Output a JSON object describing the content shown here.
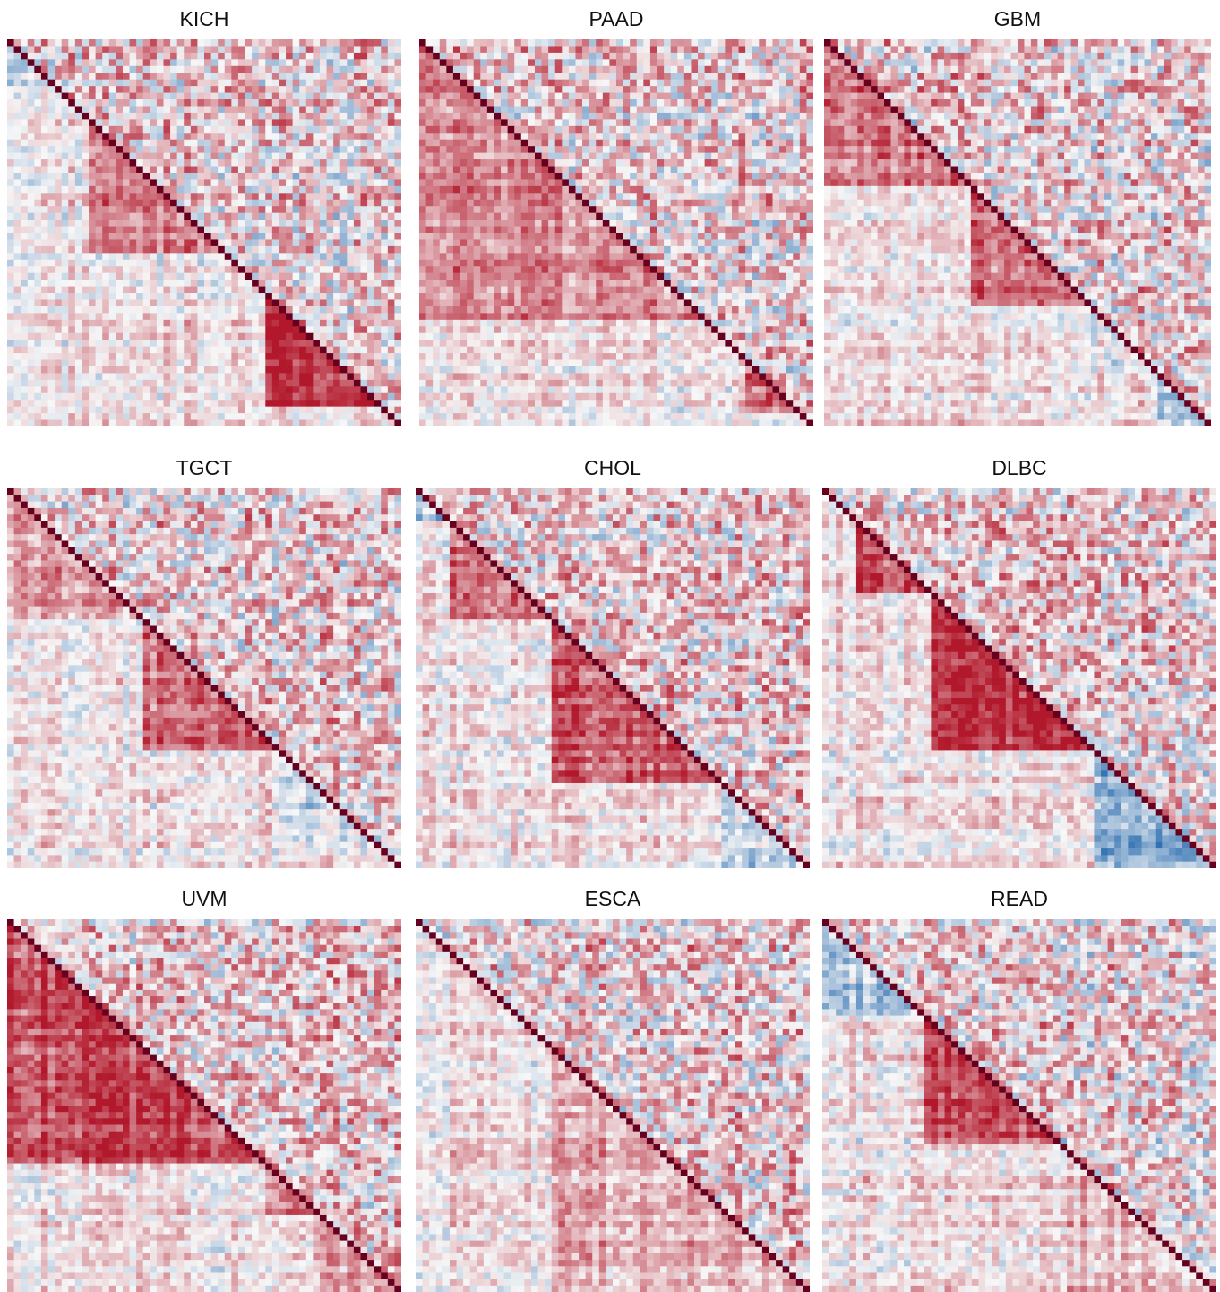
{
  "chart_data": [
    {
      "type": "heatmap",
      "title": "KICH",
      "lower_blocks": [
        [
          12,
          32,
          0.85
        ],
        [
          38,
          55,
          0.9
        ],
        [
          12,
          32,
          0.55
        ],
        [
          0,
          10,
          -0.1
        ]
      ]
    },
    {
      "type": "heatmap",
      "title": "PAAD",
      "lower_blocks": [
        [
          0,
          30,
          0.75
        ],
        [
          30,
          42,
          0.55
        ],
        [
          48,
          56,
          0.7
        ],
        [
          0,
          42,
          0.5
        ]
      ]
    },
    {
      "type": "heatmap",
      "title": "GBM",
      "lower_blocks": [
        [
          0,
          22,
          0.55
        ],
        [
          22,
          40,
          0.6
        ],
        [
          40,
          50,
          -0.05
        ],
        [
          50,
          58,
          -0.35
        ]
      ]
    },
    {
      "type": "heatmap",
      "title": "TGCT",
      "lower_blocks": [
        [
          20,
          40,
          0.65
        ],
        [
          0,
          20,
          0.45
        ],
        [
          40,
          55,
          -0.2
        ]
      ]
    },
    {
      "type": "heatmap",
      "title": "CHOL",
      "lower_blocks": [
        [
          5,
          20,
          0.55
        ],
        [
          20,
          45,
          0.7
        ],
        [
          0,
          5,
          -0.4
        ],
        [
          45,
          58,
          -0.25
        ]
      ]
    },
    {
      "type": "heatmap",
      "title": "DLBC",
      "lower_blocks": [
        [
          5,
          16,
          0.7
        ],
        [
          16,
          40,
          0.82
        ],
        [
          40,
          58,
          -0.45
        ]
      ]
    },
    {
      "type": "heatmap",
      "title": "UVM",
      "lower_blocks": [
        [
          0,
          38,
          0.75
        ],
        [
          38,
          46,
          0.55
        ],
        [
          46,
          58,
          0.35
        ]
      ]
    },
    {
      "type": "heatmap",
      "title": "ESCA",
      "lower_blocks": [
        [
          0,
          20,
          0.15
        ],
        [
          20,
          58,
          0.3
        ]
      ]
    },
    {
      "type": "heatmap",
      "title": "READ",
      "lower_blocks": [
        [
          15,
          35,
          0.75
        ],
        [
          0,
          15,
          -0.3
        ],
        [
          35,
          58,
          0.25
        ]
      ]
    }
  ],
  "colormap": {
    "negative": "#2166ac",
    "mid": "#f7f7f7",
    "positive": "#b2182b",
    "diagonal": "#67001f"
  },
  "matrix_size": 58
}
